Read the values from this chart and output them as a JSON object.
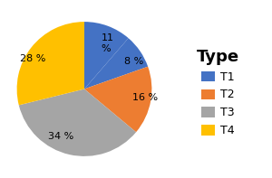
{
  "title": "Type",
  "pie_values": [
    11,
    8,
    16,
    34,
    28
  ],
  "pie_labels": [
    "11\n%",
    "8 %",
    "16 %",
    "34 %",
    "28 %"
  ],
  "pie_colors": [
    "#4472C4",
    "#4472C4",
    "#ED7D31",
    "#A5A5A5",
    "#FFC000"
  ],
  "legend_labels": [
    "T1",
    "T2",
    "T3",
    "T4"
  ],
  "legend_colors": [
    "#4472C4",
    "#ED7D31",
    "#A5A5A5",
    "#FFC000"
  ],
  "title_fontsize": 13,
  "label_fontsize": 8,
  "background_color": "#FFFFFF",
  "startangle": 90
}
